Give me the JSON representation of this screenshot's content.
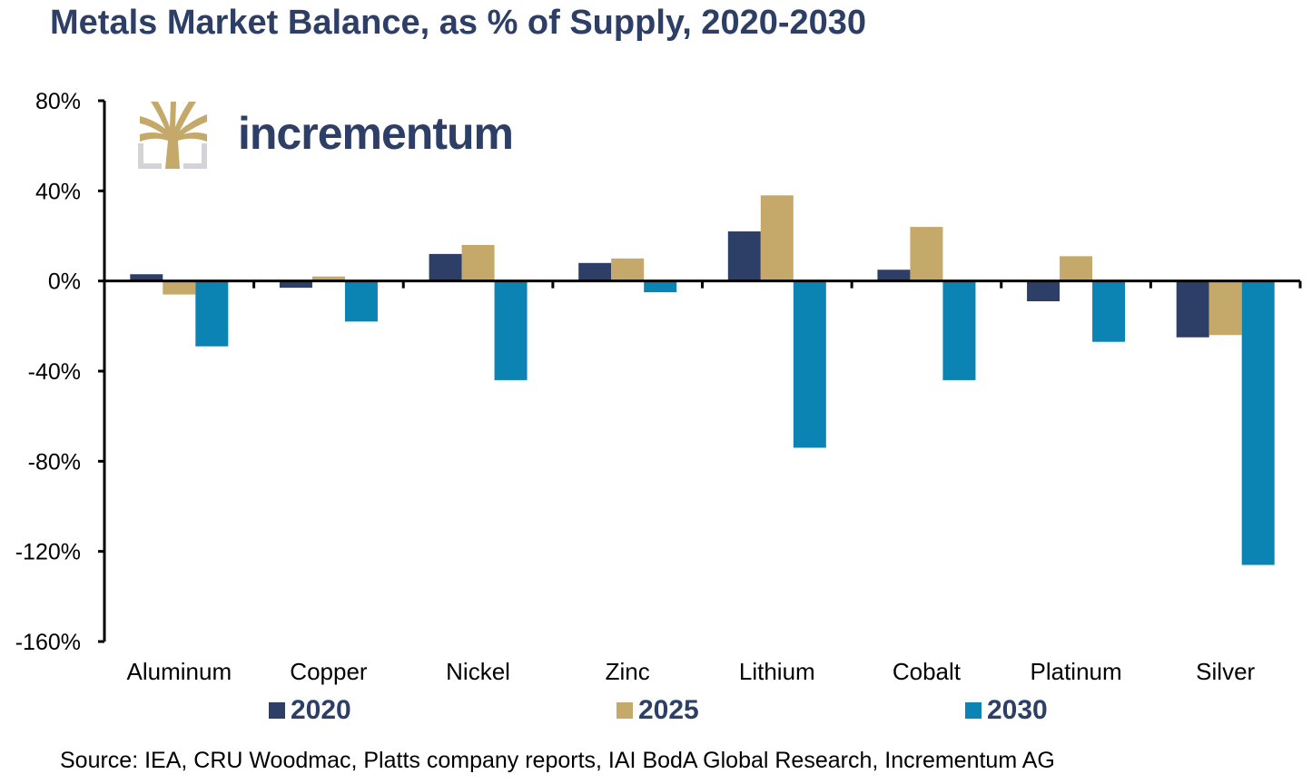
{
  "title": "Metals Market Balance, as % of Supply, 2020-2030",
  "source": "Source: IEA, CRU Woodmac, Platts company reports, IAI BodA Global Research, Incrementum AG",
  "logo": {
    "text": "incrementum"
  },
  "chart_data": {
    "type": "bar",
    "title": "Metals Market Balance, as % of Supply, 2020-2030",
    "xlabel": "",
    "ylabel": "",
    "ylim": [
      -160,
      80
    ],
    "yticks": [
      80,
      40,
      0,
      -40,
      -80,
      -120,
      -160
    ],
    "ytick_labels": [
      "80%",
      "40%",
      "0%",
      "-40%",
      "-80%",
      "-120%",
      "-160%"
    ],
    "categories": [
      "Aluminum",
      "Copper",
      "Nickel",
      "Zinc",
      "Lithium",
      "Cobalt",
      "Platinum",
      "Silver"
    ],
    "series": [
      {
        "name": "2020",
        "color": "#2d3f66",
        "values": [
          3,
          -3,
          12,
          8,
          22,
          5,
          -9,
          -25
        ]
      },
      {
        "name": "2025",
        "color": "#c4a96a",
        "values": [
          -6,
          2,
          16,
          10,
          38,
          24,
          11,
          -24
        ]
      },
      {
        "name": "2030",
        "color": "#0b84b4",
        "values": [
          -29,
          -18,
          -44,
          -5,
          -74,
          -44,
          -27,
          -126
        ]
      }
    ],
    "legend": "bottom",
    "grid": false
  }
}
